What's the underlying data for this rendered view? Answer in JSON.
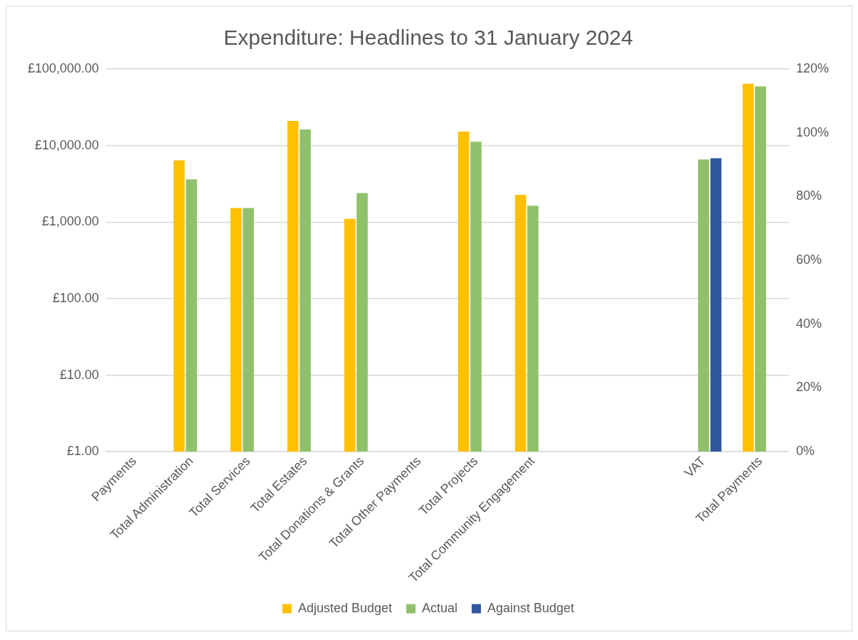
{
  "chart_data": {
    "type": "bar",
    "title": "Expenditure: Headlines to 31 January 2024",
    "categories": [
      "Payments",
      "Total Administration",
      "Total Services",
      "Total Estates",
      "Total Donations & Grants",
      "Total Other Payments",
      "Total Projects",
      "Total Community Engagement",
      null,
      null,
      "VAT",
      "Total Payments"
    ],
    "series": [
      {
        "name": "Adjusted Budget",
        "color": "#ffc000",
        "values": [
          null,
          6410,
          1530,
          21000,
          1100,
          null,
          15200,
          2270,
          null,
          null,
          null,
          64100
        ]
      },
      {
        "name": "Actual",
        "color": "#8fc16a",
        "values": [
          null,
          3610,
          1530,
          16200,
          2390,
          null,
          11200,
          1640,
          null,
          null,
          6580,
          59200
        ]
      },
      {
        "name": "Against Budget",
        "color": "#31589f",
        "axis": "y2",
        "values": [
          null,
          null,
          null,
          null,
          null,
          null,
          null,
          null,
          null,
          null,
          92,
          null
        ]
      }
    ],
    "log": true,
    "ylim": [
      1,
      100000
    ],
    "yticks": [
      {
        "value": 1,
        "label": "£1.00"
      },
      {
        "value": 10,
        "label": "£10.00"
      },
      {
        "value": 100,
        "label": "£100.00"
      },
      {
        "value": 1000,
        "label": "£1,000.00"
      },
      {
        "value": 10000,
        "label": "£10,000.00"
      },
      {
        "value": 100000,
        "label": "£100,000.00"
      }
    ],
    "y2lim": [
      0,
      120
    ],
    "y2ticks": [
      {
        "value": 0,
        "label": "0%"
      },
      {
        "value": 20,
        "label": "20%"
      },
      {
        "value": 40,
        "label": "40%"
      },
      {
        "value": 60,
        "label": "60%"
      },
      {
        "value": 80,
        "label": "80%"
      },
      {
        "value": 100,
        "label": "100%"
      },
      {
        "value": 120,
        "label": "120%"
      }
    ],
    "grid": "y",
    "legend": "bottom"
  }
}
